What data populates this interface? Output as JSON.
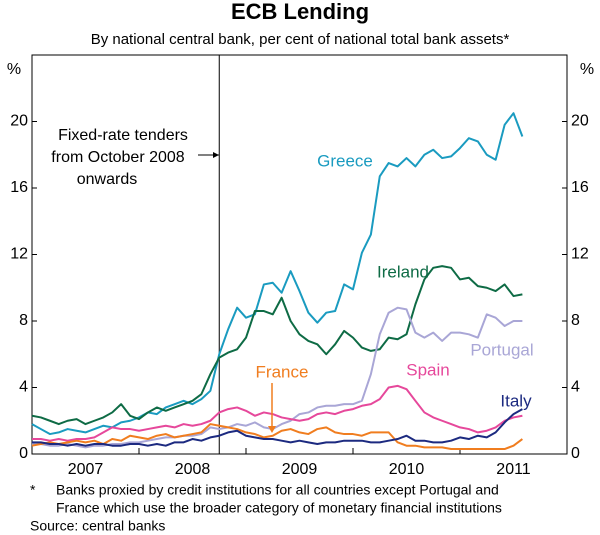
{
  "chart_data": {
    "type": "line",
    "title": "ECB Lending",
    "subtitle": "By national central bank, per cent of national total bank assets*",
    "y_unit": "%",
    "annotation": [
      "Fixed-rate tenders",
      "from October 2008",
      "onwards"
    ],
    "vline": 2008.75,
    "footnote_marker": "*",
    "footnote": [
      "Banks proxied by credit institutions for all countries except Portugal and",
      "France which use the broader category of monetary financial institutions"
    ],
    "source": "Source: central banks",
    "xlim": [
      2007,
      2012
    ],
    "xticks": [
      {
        "value": 2007,
        "label": "2007"
      },
      {
        "value": 2008,
        "label": "2008"
      },
      {
        "value": 2009,
        "label": "2009"
      },
      {
        "value": 2010,
        "label": "2010"
      },
      {
        "value": 2011,
        "label": "2011"
      }
    ],
    "ylim": [
      0,
      24
    ],
    "yticks": [
      0,
      4,
      8,
      12,
      16,
      20
    ],
    "x": [
      2007,
      2007.083,
      2007.167,
      2007.25,
      2007.333,
      2007.417,
      2007.5,
      2007.583,
      2007.667,
      2007.75,
      2007.833,
      2007.917,
      2008,
      2008.083,
      2008.167,
      2008.25,
      2008.333,
      2008.417,
      2008.5,
      2008.583,
      2008.667,
      2008.75,
      2008.833,
      2008.917,
      2009,
      2009.083,
      2009.167,
      2009.25,
      2009.333,
      2009.417,
      2009.5,
      2009.583,
      2009.667,
      2009.75,
      2009.833,
      2009.917,
      2010,
      2010.083,
      2010.167,
      2010.25,
      2010.333,
      2010.417,
      2010.5,
      2010.583,
      2010.667,
      2010.75,
      2010.833,
      2010.917,
      2011,
      2011.083,
      2011.167,
      2011.25,
      2011.333,
      2011.417,
      2011.5,
      2011.583
    ],
    "series": [
      {
        "name": "Greece",
        "color": "#1a9bc0",
        "values": [
          1.8,
          1.5,
          1.2,
          1.3,
          1.5,
          1.4,
          1.3,
          1.5,
          1.7,
          1.6,
          1.9,
          2.0,
          2.2,
          2.5,
          2.4,
          2.8,
          3.0,
          3.2,
          3.0,
          3.3,
          3.8,
          6.0,
          7.5,
          8.8,
          8.2,
          8.4,
          10.2,
          10.3,
          9.7,
          11.0,
          9.8,
          8.5,
          7.9,
          8.5,
          8.6,
          10.2,
          9.9,
          12.1,
          13.2,
          16.7,
          17.5,
          17.3,
          17.8,
          17.3,
          18.0,
          18.3,
          17.8,
          17.9,
          18.4,
          19.0,
          18.8,
          18.0,
          17.7,
          19.8,
          20.5,
          19.1
        ]
      },
      {
        "name": "Ireland",
        "color": "#0e6b45",
        "values": [
          2.3,
          2.2,
          2.0,
          1.8,
          2.0,
          2.1,
          1.8,
          2.0,
          2.2,
          2.5,
          3.0,
          2.3,
          2.1,
          2.5,
          2.8,
          2.6,
          2.8,
          3.0,
          3.2,
          3.6,
          4.8,
          5.8,
          6.1,
          6.3,
          7.0,
          8.6,
          8.6,
          8.4,
          9.4,
          8.0,
          7.2,
          6.8,
          6.6,
          6.0,
          6.6,
          7.4,
          7.0,
          6.4,
          6.2,
          6.3,
          7.0,
          6.9,
          7.2,
          9.0,
          10.5,
          11.2,
          11.3,
          11.2,
          10.5,
          10.6,
          10.1,
          10.0,
          9.8,
          10.2,
          9.5,
          9.6
        ]
      },
      {
        "name": "Portugal",
        "color": "#a9a6d6",
        "values": [
          0.6,
          0.6,
          0.5,
          0.5,
          0.6,
          0.5,
          0.4,
          0.5,
          0.5,
          0.6,
          0.6,
          0.7,
          0.7,
          0.8,
          0.9,
          1.0,
          1.0,
          1.1,
          1.1,
          1.2,
          1.6,
          1.5,
          1.6,
          1.8,
          1.7,
          1.9,
          1.6,
          1.5,
          1.8,
          2.0,
          2.4,
          2.5,
          2.8,
          2.9,
          2.9,
          3.0,
          3.0,
          3.2,
          4.8,
          7.2,
          8.5,
          8.8,
          8.7,
          7.3,
          7.0,
          7.3,
          6.8,
          7.3,
          7.3,
          7.2,
          7.0,
          8.4,
          8.2,
          7.7,
          8.0,
          8.0
        ]
      },
      {
        "name": "Spain",
        "color": "#e6489b",
        "values": [
          0.9,
          0.9,
          0.8,
          0.9,
          0.8,
          0.9,
          0.9,
          1.0,
          1.3,
          1.6,
          1.5,
          1.5,
          1.4,
          1.5,
          1.6,
          1.7,
          1.6,
          1.8,
          1.7,
          1.8,
          2.0,
          2.5,
          2.7,
          2.8,
          2.6,
          2.3,
          2.5,
          2.4,
          2.2,
          2.1,
          2.0,
          2.1,
          2.4,
          2.5,
          2.4,
          2.6,
          2.7,
          2.9,
          3.0,
          3.3,
          4.0,
          4.1,
          3.9,
          3.2,
          2.5,
          2.2,
          2.0,
          1.8,
          1.6,
          1.5,
          1.3,
          1.4,
          1.6,
          2.0,
          2.2,
          2.3
        ]
      },
      {
        "name": "France",
        "color": "#f07d1f",
        "values": [
          0.5,
          0.6,
          0.7,
          0.6,
          0.7,
          0.8,
          0.7,
          0.8,
          0.6,
          0.9,
          0.8,
          1.1,
          1.0,
          0.9,
          1.1,
          1.2,
          1.0,
          1.1,
          1.2,
          1.3,
          1.8,
          1.7,
          1.6,
          1.5,
          1.3,
          1.2,
          1.0,
          1.1,
          1.4,
          1.5,
          1.3,
          1.2,
          1.5,
          1.6,
          1.3,
          1.2,
          1.2,
          1.1,
          1.3,
          1.3,
          1.3,
          0.7,
          0.5,
          0.5,
          0.4,
          0.4,
          0.4,
          0.3,
          0.3,
          0.3,
          0.3,
          0.3,
          0.3,
          0.3,
          0.5,
          0.9
        ]
      },
      {
        "name": "Italy",
        "color": "#1c2a80",
        "values": [
          0.7,
          0.7,
          0.6,
          0.6,
          0.5,
          0.6,
          0.5,
          0.6,
          0.6,
          0.5,
          0.5,
          0.6,
          0.6,
          0.5,
          0.6,
          0.5,
          0.7,
          0.7,
          0.9,
          0.8,
          1.0,
          1.1,
          1.3,
          1.4,
          1.1,
          1.0,
          0.9,
          0.9,
          0.8,
          0.7,
          0.8,
          0.7,
          0.6,
          0.7,
          0.7,
          0.8,
          0.8,
          0.8,
          0.7,
          0.7,
          0.8,
          0.9,
          1.1,
          0.8,
          0.8,
          0.7,
          0.7,
          0.8,
          1.0,
          0.9,
          1.1,
          1.0,
          1.3,
          1.9,
          2.4,
          2.7
        ]
      }
    ]
  }
}
